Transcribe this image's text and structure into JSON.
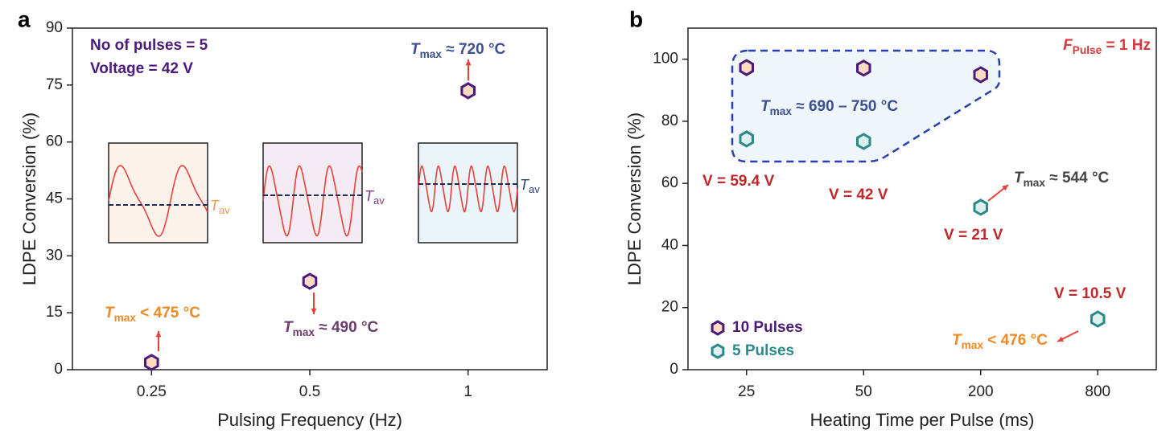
{
  "chart_data": [
    {
      "type": "scatter",
      "panel": "a",
      "x_label": "Pulsing Frequency (Hz)",
      "y_label": "LDPE Conversion (%)",
      "categories": [
        "0.25",
        "0.5",
        "1"
      ],
      "series": [
        {
          "color": "#4b1a7a",
          "fill": "#f9dcc2",
          "values": [
            1.9,
            23.3,
            73.5
          ]
        }
      ],
      "ylim": [
        0,
        90
      ],
      "yticks": [
        0,
        15,
        30,
        45,
        60,
        75,
        90
      ],
      "annotations": [
        {
          "color": "#4b1a7a",
          "parts": [
            {
              "text": "No of pulses = 5"
            }
          ]
        },
        {
          "color": "#4b1a7a",
          "parts": [
            {
              "text": "Voltage = 42 V"
            }
          ]
        },
        {
          "color": "#3d4f8f",
          "parts": [
            {
              "text": "T",
              "style": "italic"
            },
            {
              "text": "max",
              "style": "sub"
            },
            {
              "text": " ≈ 720 °C"
            }
          ]
        },
        {
          "color": "#f08a24",
          "parts": [
            {
              "text": "T",
              "style": "italic"
            },
            {
              "text": "max",
              "style": "sub"
            },
            {
              "text": " < 475 °C"
            }
          ]
        },
        {
          "color": "#6b3a6b",
          "parts": [
            {
              "text": "T",
              "style": "italic"
            },
            {
              "text": "max",
              "style": "sub"
            },
            {
              "text": " ≈ 490 °C"
            }
          ]
        }
      ],
      "insets": [
        {
          "color": "#f0a040",
          "background": "#fdf3ea",
          "parts": [
            {
              "text": "T",
              "style": "italic"
            },
            {
              "text": "av",
              "style": "sub"
            }
          ]
        },
        {
          "color": "#7a3a7a",
          "background": "#f4ecf2",
          "parts": [
            {
              "text": "T",
              "style": "italic"
            },
            {
              "text": "av",
              "style": "sub"
            }
          ]
        },
        {
          "color": "#2c3f7a",
          "background": "#eaf4f9",
          "parts": [
            {
              "text": "T",
              "style": "italic"
            },
            {
              "text": "av",
              "style": "sub"
            }
          ]
        }
      ]
    },
    {
      "type": "scatter",
      "panel": "b",
      "x_label": "Heating Time per Pulse (ms)",
      "y_label": "LDPE Conversion (%)",
      "categories": [
        "25",
        "50",
        "200",
        "800"
      ],
      "series": [
        {
          "name": "10 Pulses",
          "color": "#4b1a7a",
          "fill": "#f9dcc2",
          "values": [
            97.3,
            97.1,
            95.0,
            null
          ]
        },
        {
          "name": "5 Pulses",
          "color": "#2a8a8a",
          "fill": "#def0ee",
          "values": [
            74.3,
            73.5,
            52.3,
            16.3
          ]
        }
      ],
      "legend": "lower left",
      "ylim": [
        0,
        110
      ],
      "yticks": [
        0,
        20,
        40,
        60,
        80,
        100
      ],
      "annotations": [
        {
          "color": "#d9363e",
          "parts": [
            {
              "text": "F",
              "style": "italic"
            },
            {
              "text": "Pulse",
              "style": "sub"
            },
            {
              "text": " = 1 Hz"
            }
          ]
        },
        {
          "color": "#3d4f8f",
          "parts": [
            {
              "text": "T",
              "style": "italic"
            },
            {
              "text": "max",
              "style": "sub"
            },
            {
              "text": " ≈ 690 – 750 °C"
            }
          ]
        },
        {
          "color": "#c0282a",
          "parts": [
            {
              "text": "V = 59.4 V"
            }
          ]
        },
        {
          "color": "#c0282a",
          "parts": [
            {
              "text": "V = 42 V"
            }
          ]
        },
        {
          "color": "#c0282a",
          "parts": [
            {
              "text": "V = 21 V"
            }
          ]
        },
        {
          "color": "#c0282a",
          "parts": [
            {
              "text": "V = 10.5 V"
            }
          ]
        },
        {
          "color": "#444444",
          "parts": [
            {
              "text": "T",
              "style": "italic"
            },
            {
              "text": "max",
              "style": "sub"
            },
            {
              "text": " ≈ 544 °C"
            }
          ]
        },
        {
          "color": "#f08a24",
          "parts": [
            {
              "text": "T",
              "style": "italic"
            },
            {
              "text": "max",
              "style": "sub"
            },
            {
              "text": " < 476 °C"
            }
          ]
        }
      ]
    }
  ]
}
